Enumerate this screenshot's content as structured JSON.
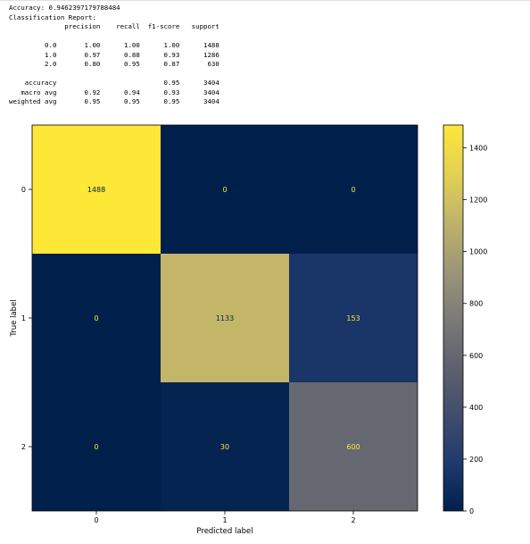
{
  "report": {
    "accuracy_line": "Accuracy: 0.9462397179788484",
    "report_title": "Classification Report:",
    "header": "              precision    recall  f1-score   support",
    "rows": [
      "",
      "         0.0       1.00      1.00      1.00      1488",
      "         1.0       0.97      0.88      0.93      1286",
      "         2.0       0.80      0.95      0.87       630",
      "",
      "    accuracy                           0.95      3404",
      "   macro avg       0.92      0.94      0.93      3404",
      "weighted avg       0.95      0.95      0.95      3404"
    ]
  },
  "chart_data": {
    "type": "heatmap",
    "colormap": "cividis",
    "x_categories": [
      "0",
      "1",
      "2"
    ],
    "y_categories": [
      "0",
      "1",
      "2"
    ],
    "values": [
      [
        1488,
        0,
        0
      ],
      [
        0,
        1133,
        153
      ],
      [
        0,
        30,
        600
      ]
    ],
    "xlabel": "Predicted label",
    "ylabel": "True label",
    "colorbar": {
      "min": 0,
      "max": 1488,
      "ticks": [
        0,
        200,
        400,
        600,
        800,
        1000,
        1200,
        1400
      ]
    },
    "text_colors": {
      "on_dark": "#fde737",
      "on_light": "#00204c"
    }
  }
}
